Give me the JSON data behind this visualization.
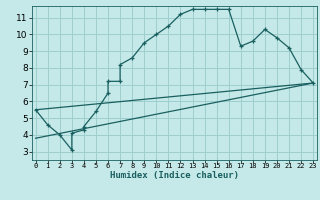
{
  "title": "",
  "xlabel": "Humidex (Indice chaleur)",
  "ylabel": "",
  "bg_color": "#c5e8e8",
  "grid_color": "#9ecece",
  "line_color": "#1a6060",
  "x_ticks": [
    0,
    1,
    2,
    3,
    4,
    5,
    6,
    7,
    8,
    9,
    10,
    11,
    12,
    13,
    14,
    15,
    16,
    17,
    18,
    19,
    20,
    21,
    22,
    23
  ],
  "y_ticks": [
    3,
    4,
    5,
    6,
    7,
    8,
    9,
    10,
    11
  ],
  "xlim": [
    -0.3,
    23.3
  ],
  "ylim": [
    2.5,
    11.7
  ],
  "main_x": [
    0,
    1,
    2,
    3,
    3,
    4,
    4,
    5,
    6,
    6,
    7,
    7,
    8,
    9,
    10,
    11,
    12,
    13,
    14,
    15,
    16,
    17,
    18,
    19,
    20,
    21,
    22,
    23
  ],
  "main_y": [
    5.5,
    4.6,
    4.0,
    3.1,
    4.1,
    4.3,
    4.5,
    5.4,
    6.5,
    7.2,
    7.2,
    8.2,
    8.6,
    9.5,
    10.0,
    10.5,
    11.2,
    11.5,
    11.5,
    11.5,
    11.5,
    9.3,
    9.6,
    10.3,
    9.8,
    9.2,
    7.9,
    7.1
  ],
  "line2_x": [
    0,
    23
  ],
  "line2_y": [
    3.8,
    7.1
  ],
  "line3_x": [
    0,
    23
  ],
  "line3_y": [
    5.5,
    7.1
  ],
  "xlabel_fontsize": 6.5,
  "tick_fontsize_x": 5.0,
  "tick_fontsize_y": 6.5
}
